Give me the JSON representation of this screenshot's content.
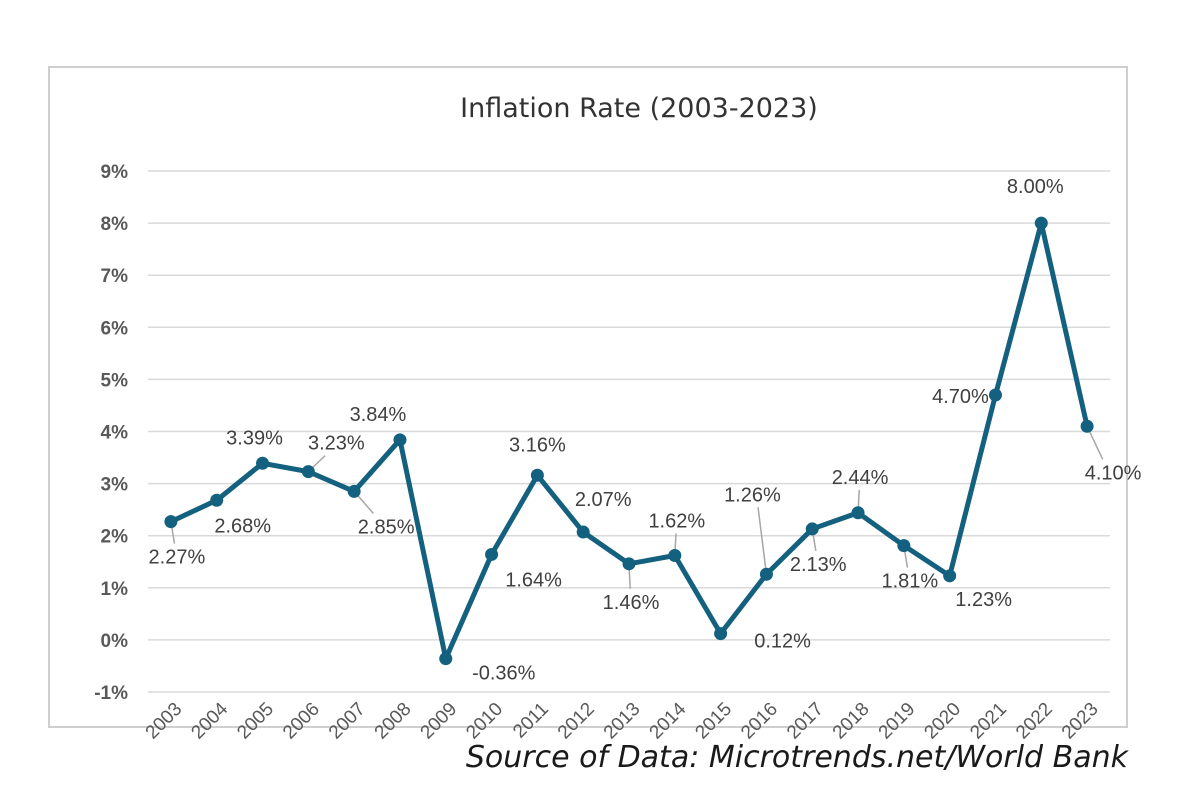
{
  "chart_data": {
    "type": "line",
    "title": "Inflation Rate (2003-2023)",
    "xlabel": "",
    "ylabel": "",
    "categories": [
      "2003",
      "2004",
      "2005",
      "2006",
      "2007",
      "2008",
      "2009",
      "2010",
      "2011",
      "2012",
      "2013",
      "2014",
      "2015",
      "2016",
      "2017",
      "2018",
      "2019",
      "2020",
      "2021",
      "2022",
      "2023"
    ],
    "series": [
      {
        "values": [
          2.27,
          2.68,
          3.39,
          3.23,
          2.85,
          3.84,
          -0.36,
          1.64,
          3.16,
          2.07,
          1.46,
          1.62,
          0.12,
          1.26,
          2.13,
          2.44,
          1.81,
          1.23,
          4.7,
          8.0,
          4.1
        ],
        "data_labels": [
          "2.27%",
          "2.68%",
          "3.39%",
          "3.23%",
          "2.85%",
          "3.84%",
          "-0.36%",
          "1.64%",
          "3.16%",
          "2.07%",
          "1.46%",
          "1.62%",
          "0.12%",
          "1.26%",
          "2.13%",
          "2.44%",
          "1.81%",
          "1.23%",
          "4.70%",
          "8.00%",
          "4.10%"
        ],
        "color": "#13607f"
      }
    ],
    "ylim": [
      -1,
      9
    ],
    "yticks": [
      "-1%",
      "0%",
      "1%",
      "2%",
      "3%",
      "4%",
      "5%",
      "6%",
      "7%",
      "8%",
      "9%"
    ],
    "grid": true,
    "legend": "none"
  },
  "footer": {
    "source": "Source of Data: Microtrends.net/World Bank"
  }
}
